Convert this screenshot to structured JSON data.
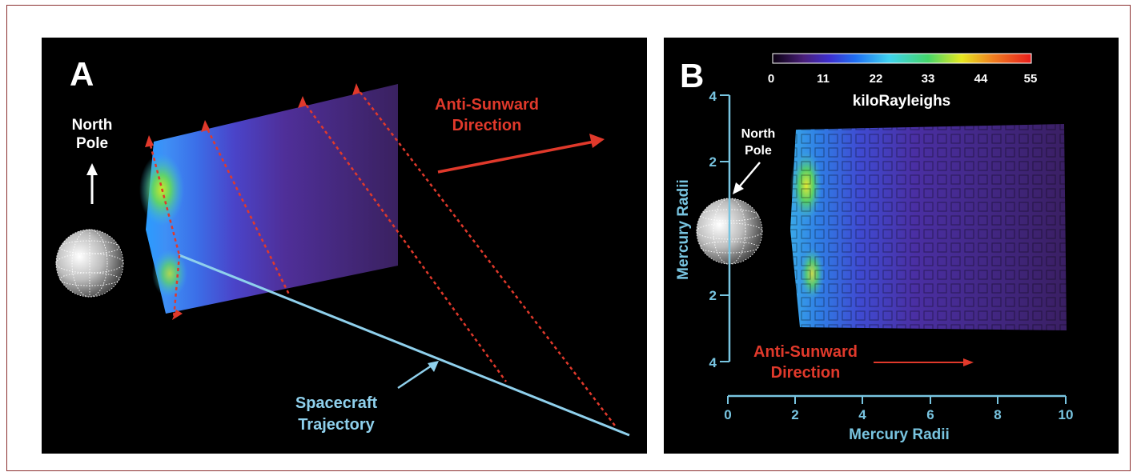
{
  "panel_a": {
    "letter": "A",
    "north_pole": [
      "North",
      "Pole"
    ],
    "anti_sunward": [
      "Anti-Sunward",
      "Direction"
    ],
    "spacecraft": [
      "Spacecraft",
      "Trajectory"
    ]
  },
  "panel_b": {
    "letter": "B",
    "colorbar": {
      "ticks": [
        "0",
        "11",
        "22",
        "33",
        "44",
        "55"
      ],
      "unit": "kiloRayleighs"
    },
    "y_axis": {
      "label": "Mercury Radii",
      "ticks": [
        "4",
        "2",
        "2",
        "4"
      ]
    },
    "x_axis": {
      "label": "Mercury Radii",
      "ticks": [
        "0",
        "2",
        "4",
        "6",
        "8",
        "10"
      ]
    },
    "north_pole": [
      "North",
      "Pole"
    ],
    "anti_sunward": [
      "Anti-Sunward",
      "Direction"
    ]
  },
  "colors": {
    "frame": "#8a2f2f",
    "red_label": "#e0392b",
    "cyan_axis": "#78c4e0",
    "background": "#000000"
  }
}
